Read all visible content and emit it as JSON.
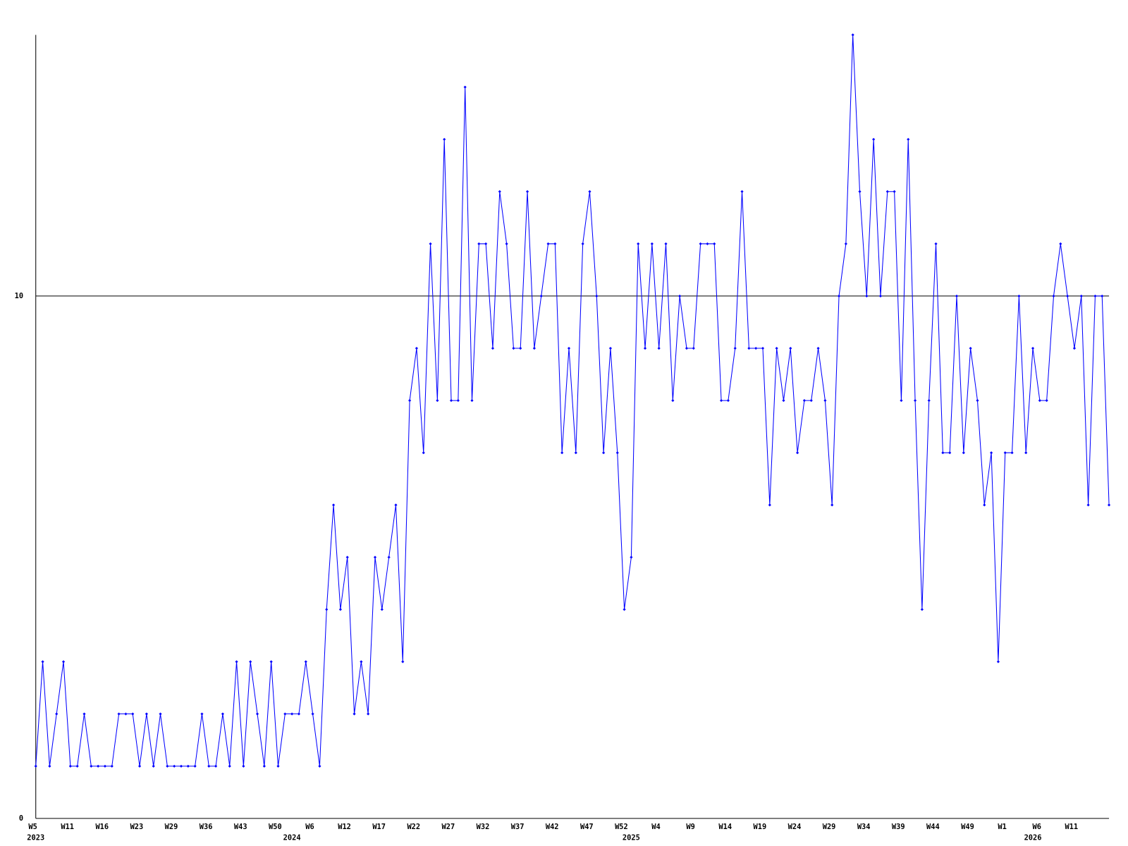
{
  "chart_data": {
    "type": "line",
    "categories": [
      "W5",
      null,
      null,
      null,
      null,
      "W11",
      null,
      null,
      null,
      null,
      "W16",
      null,
      null,
      null,
      null,
      "W23",
      null,
      null,
      null,
      null,
      "W29",
      null,
      null,
      null,
      null,
      "W36",
      null,
      null,
      null,
      null,
      "W43",
      null,
      null,
      null,
      null,
      "W50",
      null,
      null,
      null,
      null,
      "W6",
      null,
      null,
      null,
      null,
      "W12",
      null,
      null,
      null,
      null,
      "W17",
      null,
      null,
      null,
      null,
      "W22",
      null,
      null,
      null,
      null,
      "W27",
      null,
      null,
      null,
      null,
      "W32",
      null,
      null,
      null,
      null,
      "W37",
      null,
      null,
      null,
      null,
      "W42",
      null,
      null,
      null,
      null,
      "W47",
      null,
      null,
      null,
      null,
      "W52",
      null,
      null,
      null,
      null,
      "W4",
      null,
      null,
      null,
      null,
      "W9",
      null,
      null,
      null,
      null,
      "W14",
      null,
      null,
      null,
      null,
      "W19",
      null,
      null,
      null,
      null,
      "W24",
      null,
      null,
      null,
      null,
      "W29",
      null,
      null,
      null,
      null,
      "W34",
      null,
      null,
      null,
      null,
      "W39",
      null,
      null,
      null,
      null,
      "W44",
      null,
      null,
      null,
      null,
      "W49",
      null,
      null,
      null,
      null,
      "W1",
      null,
      null,
      null,
      null,
      "W6",
      null,
      null,
      null,
      null,
      "W11",
      null,
      null,
      null,
      null,
      null
    ],
    "year_labels": [
      "2023",
      null,
      null,
      null,
      null,
      null,
      null,
      null,
      null,
      null,
      null,
      null,
      null,
      null,
      null,
      null,
      null,
      null,
      null,
      null,
      null,
      null,
      null,
      null,
      null,
      null,
      null,
      null,
      null,
      null,
      null,
      null,
      null,
      null,
      null,
      null,
      null,
      "2024",
      null,
      null,
      null,
      null,
      null,
      null,
      null,
      null,
      null,
      null,
      null,
      null,
      null,
      null,
      null,
      null,
      null,
      null,
      null,
      null,
      null,
      null,
      null,
      null,
      null,
      null,
      null,
      null,
      null,
      null,
      null,
      null,
      null,
      null,
      null,
      null,
      null,
      null,
      null,
      null,
      null,
      null,
      null,
      null,
      null,
      null,
      null,
      null,
      "2025",
      null,
      null,
      null,
      null,
      null,
      null,
      null,
      null,
      null,
      null,
      null,
      null,
      null,
      null,
      null,
      null,
      null,
      null,
      null,
      null,
      null,
      null,
      null,
      null,
      null,
      null,
      null,
      null,
      null,
      null,
      null,
      null,
      null,
      null,
      null,
      null,
      null,
      null,
      null,
      null,
      null,
      null,
      null,
      null,
      null,
      null,
      null,
      null,
      null,
      null,
      null,
      null,
      null,
      null,
      null,
      null,
      null,
      "2026",
      null,
      null,
      null,
      null,
      null,
      null,
      null,
      null,
      null,
      null,
      null,
      null,
      null,
      null,
      null,
      null
    ],
    "series": [
      {
        "color": "#0000ff",
        "values": [
          1,
          3,
          1,
          2,
          3,
          1,
          1,
          2,
          1,
          1,
          1,
          1,
          2,
          2,
          2,
          1,
          2,
          1,
          2,
          1,
          1,
          1,
          1,
          1,
          2,
          1,
          1,
          2,
          1,
          3,
          1,
          3,
          2,
          1,
          3,
          1,
          2,
          2,
          2,
          3,
          2,
          1,
          4,
          6,
          4,
          5,
          2,
          3,
          2,
          5,
          4,
          5,
          6,
          3,
          8,
          9,
          7,
          11,
          8,
          13,
          8,
          8,
          14,
          8,
          11,
          11,
          9,
          12,
          11,
          9,
          9,
          12,
          9,
          10,
          11,
          11,
          7,
          9,
          7,
          11,
          12,
          10,
          7,
          9,
          7,
          4,
          5,
          11,
          9,
          11,
          9,
          11,
          8,
          10,
          9,
          9,
          11,
          11,
          11,
          8,
          8,
          9,
          12,
          9,
          9,
          9,
          6,
          9,
          8,
          9,
          7,
          8,
          8,
          9,
          8,
          6,
          10,
          11,
          15,
          12,
          10,
          13,
          10,
          12,
          12,
          8,
          13,
          8,
          4,
          8,
          11,
          7,
          7,
          10,
          7,
          9,
          8,
          6,
          7,
          3,
          7,
          7,
          10,
          7,
          9,
          8,
          8,
          10,
          11,
          10,
          9,
          10,
          6,
          10,
          10,
          6
        ]
      }
    ],
    "ylim": [
      0,
      15
    ],
    "yticks": [
      0,
      10
    ],
    "grid": true
  }
}
